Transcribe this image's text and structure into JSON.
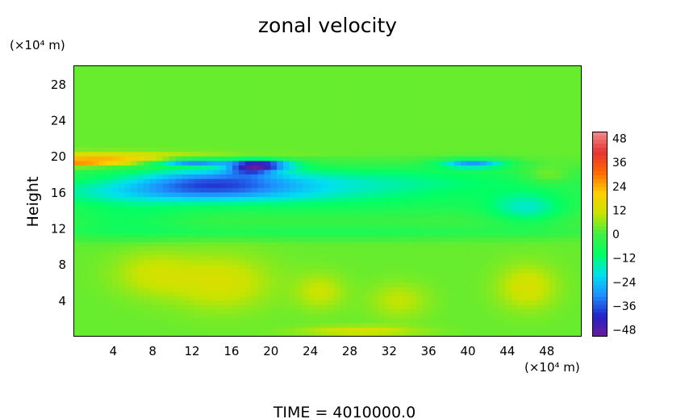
{
  "chart_data": {
    "type": "heatmap",
    "title": "zonal velocity",
    "ylabel": "Height",
    "y_unit": "(×10⁴ m)",
    "x_unit": "(×10⁴ m)",
    "xlim": [
      0,
      51.5
    ],
    "ylim": [
      0,
      30
    ],
    "xticks": [
      "4",
      "8",
      "12",
      "16",
      "20",
      "24",
      "28",
      "32",
      "36",
      "40",
      "44",
      "48"
    ],
    "yticks": [
      "4",
      "8",
      "12",
      "16",
      "20",
      "24",
      "28"
    ],
    "colorbar": {
      "min": -52,
      "max": 52,
      "labels": [
        "48",
        "36",
        "24",
        "12",
        "0",
        "−12",
        "−24",
        "−36",
        "−48"
      ],
      "colors": [
        "#6a1b9a",
        "#2424c8",
        "#1e90ff",
        "#00e0f0",
        "#00ff66",
        "#40f040",
        "#c8e400",
        "#ffd000",
        "#ff6a00",
        "#e83232",
        "#f08c8c"
      ]
    },
    "background_value": 3,
    "field": [
      {
        "x": 0,
        "y": 19.4,
        "wx": 6,
        "wy": 0.5,
        "v": 28
      },
      {
        "x": 7,
        "y": 19.7,
        "wx": 6,
        "wy": 0.35,
        "v": 14
      },
      {
        "x": 0,
        "y": 20.4,
        "wx": 18,
        "wy": 0.25,
        "v": 12
      },
      {
        "x": 12,
        "y": 19.4,
        "wx": 4,
        "wy": 0.35,
        "v": -34
      },
      {
        "x": 18,
        "y": 18.8,
        "wx": 2.5,
        "wy": 0.8,
        "v": -30
      },
      {
        "x": 20,
        "y": 19.1,
        "wx": 3,
        "wy": 0.5,
        "v": -24
      },
      {
        "x": 40.5,
        "y": 19.2,
        "wx": 3.5,
        "wy": 0.5,
        "v": -30
      },
      {
        "x": 25,
        "y": 17.5,
        "wx": 26,
        "wy": 1.6,
        "v": -15
      },
      {
        "x": 14,
        "y": 17.2,
        "wx": 8,
        "wy": 1.6,
        "v": -20
      },
      {
        "x": 10,
        "y": 16,
        "wx": 18,
        "wy": 1.3,
        "v": -14
      },
      {
        "x": 26,
        "y": 15,
        "wx": 30,
        "wy": 2.2,
        "v": -10
      },
      {
        "x": 46,
        "y": 14.2,
        "wx": 4,
        "wy": 1.8,
        "v": -15
      },
      {
        "x": 48,
        "y": 17.8,
        "wx": 2.5,
        "wy": 1,
        "v": 8
      },
      {
        "x": 25,
        "y": 11.6,
        "wx": 30,
        "wy": 0.8,
        "v": -8
      },
      {
        "x": 5,
        "y": 13,
        "wx": 7,
        "wy": 2,
        "v": -8
      },
      {
        "x": 15,
        "y": 6,
        "wx": 5,
        "wy": 3,
        "v": 10
      },
      {
        "x": 8,
        "y": 7,
        "wx": 4,
        "wy": 2.5,
        "v": 8
      },
      {
        "x": 46,
        "y": 5.5,
        "wx": 3,
        "wy": 2.5,
        "v": 10
      },
      {
        "x": 25,
        "y": 5,
        "wx": 2.5,
        "wy": 2,
        "v": 8
      },
      {
        "x": 33,
        "y": 4,
        "wx": 3,
        "wy": 2,
        "v": 7
      },
      {
        "x": 29,
        "y": 0.6,
        "wx": 6,
        "wy": 0.6,
        "v": 10
      }
    ]
  },
  "footer": "TIME  =  4010000.0"
}
